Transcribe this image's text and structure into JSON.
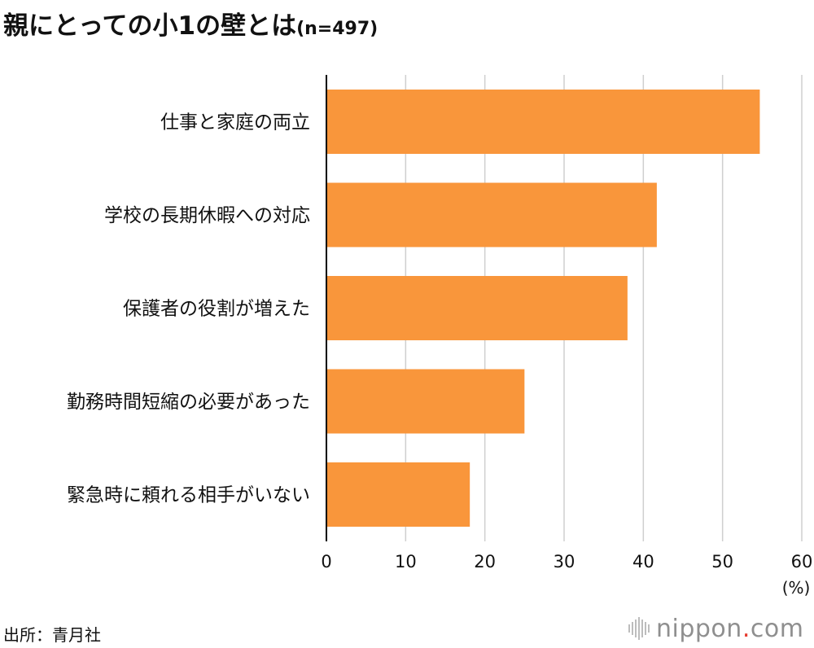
{
  "title": {
    "main": "親にとっての小1の壁とは",
    "sample": "(n=497)"
  },
  "source": "出所：青月社",
  "logo": {
    "name": "nippon",
    "dot": ".",
    "tld": "com"
  },
  "colors": {
    "bar": "#f9963b",
    "grid": "#cfcfcf",
    "axis": "#000000",
    "text": "#111111"
  },
  "chart_data": {
    "type": "bar",
    "orientation": "horizontal",
    "categories": [
      "仕事と家庭の両立",
      "学校の長期休暇への対応",
      "保護者の役割が増えた",
      "勤務時間短縮の必要があった",
      "緊急時に頼れる相手がいない"
    ],
    "values": [
      54.7,
      41.7,
      38.0,
      25.0,
      18.1
    ],
    "xlim": [
      0,
      60
    ],
    "xticks": [
      "0",
      "10",
      "20",
      "30",
      "40",
      "50",
      "60"
    ],
    "unit_label": "(%)",
    "grid": true
  }
}
